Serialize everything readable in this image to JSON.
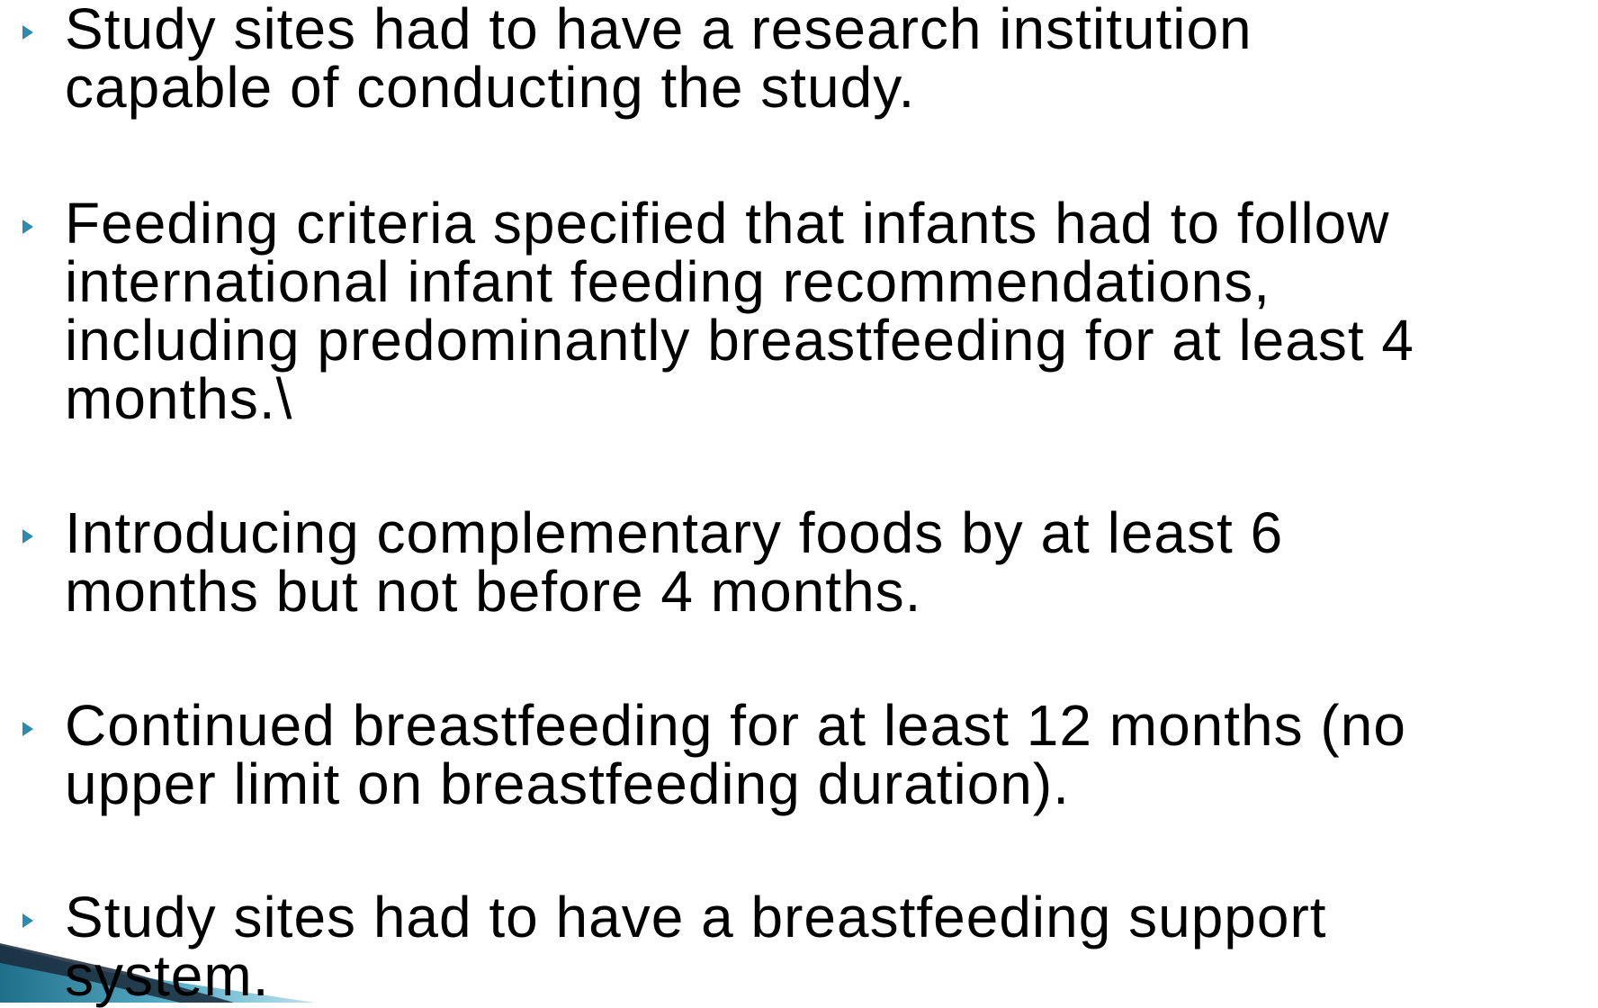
{
  "bullets": [
    {
      "lines": [
        "Study sites had to have a research institution",
        "capable of conducting the study."
      ]
    },
    {
      "lines": [
        "Feeding criteria specified that infants had to follow",
        "international infant feeding recommendations,",
        "including predominantly breastfeeding for at least 4",
        "months.\\"
      ]
    },
    {
      "lines": [
        "Introducing complementary foods by at least 6",
        "months but not before 4 months."
      ]
    },
    {
      "lines": [
        "Continued breastfeeding for at least 12 months (no",
        "upper limit on breastfeeding duration)."
      ]
    },
    {
      "lines": [
        "Study sites had to have a breastfeeding support",
        "system."
      ]
    }
  ]
}
